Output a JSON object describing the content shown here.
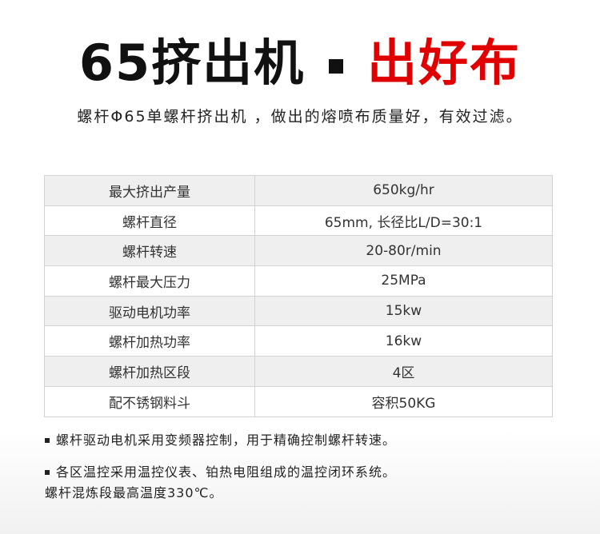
{
  "title": {
    "main": "65挤出机",
    "accent": "出好布",
    "accent_color": "#e00000"
  },
  "subtitle": "螺杆Φ65单螺杆挤出机 ，做出的熔喷布质量好，有效过滤。",
  "specs": [
    {
      "label": "最大挤出产量",
      "value": "650kg/hr"
    },
    {
      "label": "螺杆直径",
      "value": "65mm, 长径比L/D=30:1"
    },
    {
      "label": "螺杆转速",
      "value": "20-80r/min"
    },
    {
      "label": "螺杆最大压力",
      "value": "25MPa"
    },
    {
      "label": "驱动电机功率",
      "value": "15kw"
    },
    {
      "label": "螺杆加热功率",
      "value": "16kw"
    },
    {
      "label": "螺杆加热区段",
      "value": "4区"
    },
    {
      "label": "配不锈钢料斗",
      "value": "容积50KG"
    }
  ],
  "notes": [
    {
      "line1": "螺杆驱动电机采用变频器控制，用于精确控制螺杆转速。"
    },
    {
      "line1": "各区温控采用温控仪表、铂热电阻组成的温控闭环系统。",
      "line2": "螺杆混炼段最高温度330℃。"
    }
  ]
}
